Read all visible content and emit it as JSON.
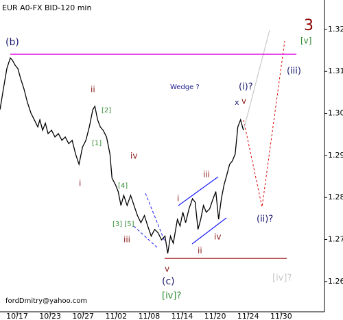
{
  "chart_data": {
    "type": "line",
    "title": "EUR A0-FX BID-120 min",
    "color": "#000000",
    "x": [
      -2.08,
      -1.67,
      -1.25,
      -0.83,
      -0.58,
      -0.25,
      0.08,
      0.42,
      0.83,
      1.25,
      1.67,
      2.08,
      2.5,
      2.75,
      3.08,
      3.42,
      3.75,
      4.17,
      4.58,
      5,
      5.42,
      5.83,
      6.25,
      6.67,
      7.08,
      7.5,
      7.92,
      8.33,
      8.75,
      9.17,
      9.42,
      9.75,
      10.08,
      10.42,
      10.83,
      11.25,
      11.5,
      11.92,
      12.25,
      12.58,
      12.92,
      13.33,
      13.75,
      14.17,
      14.58,
      15,
      15.42,
      15.83,
      16.25,
      16.67,
      17.08,
      17.5,
      17.92,
      18.25,
      18.58,
      18.92,
      19.42,
      19.75,
      20.08,
      20.42,
      20.83,
      21.25,
      21.58,
      21.92,
      22.25,
      22.58,
      22.92,
      23.33,
      23.75,
      24.08,
      24.42,
      24.75,
      25.08,
      25.42,
      25.75,
      26.08,
      26.42,
      26.75,
      27.08,
      27.42
    ],
    "values": [
      1.3009,
      1.3058,
      1.3107,
      1.3132,
      1.3127,
      1.3115,
      1.3107,
      1.3083,
      1.3058,
      1.3026,
      1.3001,
      1.2985,
      1.2968,
      1.2985,
      1.296,
      1.2977,
      1.2952,
      1.296,
      1.2944,
      1.2952,
      1.2936,
      1.2944,
      1.2928,
      1.2936,
      1.2903,
      1.2879,
      1.292,
      1.2936,
      1.2968,
      1.3009,
      1.3017,
      1.2985,
      1.2968,
      1.296,
      1.2944,
      1.2903,
      1.2846,
      1.283,
      1.2814,
      1.2781,
      1.2805,
      1.2781,
      1.2805,
      1.2781,
      1.2757,
      1.274,
      1.2757,
      1.2732,
      1.2708,
      1.2724,
      1.2716,
      1.2699,
      1.2708,
      1.2667,
      1.2708,
      1.2691,
      1.2748,
      1.2732,
      1.2765,
      1.274,
      1.2773,
      1.2797,
      1.2789,
      1.2724,
      1.2748,
      1.2781,
      1.2765,
      1.2773,
      1.2797,
      1.2814,
      1.2748,
      1.2797,
      1.283,
      1.2854,
      1.2879,
      1.2887,
      1.2903,
      1.2968,
      1.2985,
      1.296
    ],
    "xlim": [
      -2.08,
      37.25
    ],
    "ylim": [
      1.2528,
      1.327
    ],
    "xticks": [
      {
        "value": 0,
        "label": "10/17"
      },
      {
        "value": 4,
        "label": "10/23"
      },
      {
        "value": 8,
        "label": "10/27"
      },
      {
        "value": 12,
        "label": "11/02"
      },
      {
        "value": 16,
        "label": "11/08"
      },
      {
        "value": 20,
        "label": "11/14"
      },
      {
        "value": 24,
        "label": "11/20"
      },
      {
        "value": 28,
        "label": "11/24"
      },
      {
        "value": 32,
        "label": "11/30"
      }
    ],
    "yticks": [
      1.26,
      1.27,
      1.28,
      1.29,
      {
        "value": 1.3,
        "label": "1.30"
      },
      1.31,
      1.32
    ],
    "levels": [
      {
        "value": 1.3141,
        "color": "#e000e0"
      },
      {
        "value": 1.2655,
        "color": "#a01010"
      }
    ],
    "annotations": [
      {
        "text": "3",
        "color": "#8b0000"
      },
      {
        "text": "[v]",
        "color": "#2e8b2e"
      },
      {
        "text": "(b)",
        "color": "#1a1a6e"
      },
      {
        "text": "(iii)",
        "color": "#1a1a6e"
      },
      {
        "text": "ii",
        "color": "#8b1a1a"
      },
      {
        "text": "Wedge ?",
        "color": "#1a1a8e"
      },
      {
        "text": "(i)?",
        "color": "#1a1a6e"
      },
      {
        "text": "x",
        "color": "#1a1a6e"
      },
      {
        "text": "v",
        "color": "#8b1a1a"
      },
      {
        "text": "[2]",
        "color": "#2e8b2e"
      },
      {
        "text": "[1]",
        "color": "#2e8b2e"
      },
      {
        "text": "i",
        "color": "#8b1a1a"
      },
      {
        "text": "iv",
        "color": "#8b1a1a"
      },
      {
        "text": "[4]",
        "color": "#2e8b2e"
      },
      {
        "text": "[3] [5]",
        "color": "#2e8b2e"
      },
      {
        "text": "iii",
        "color": "#8b1a1a"
      },
      {
        "text": "iii",
        "color": "#8b1a1a"
      },
      {
        "text": "i",
        "color": "#8b1a1a"
      },
      {
        "text": "iv",
        "color": "#8b1a1a"
      },
      {
        "text": "ii",
        "color": "#8b1a1a"
      },
      {
        "text": "(ii)?",
        "color": "#1a1a6e"
      },
      {
        "text": "v",
        "color": "#8b1a1a"
      },
      {
        "text": "(c)",
        "color": "#1a1a6e"
      },
      {
        "text": "[iv]?",
        "color": "#2e8b2e"
      },
      {
        "text": "[iv]?",
        "color": "#c8c8c8"
      },
      {
        "text": "fordDmitry@yahoo.com",
        "color": "#000000"
      }
    ]
  }
}
